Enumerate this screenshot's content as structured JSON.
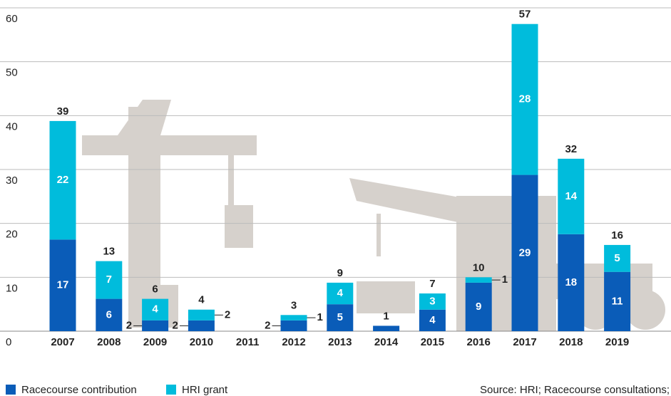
{
  "chart_data": {
    "type": "stacked-bar",
    "categories": [
      "2007",
      "2008",
      "2009",
      "2010",
      "2011",
      "2012",
      "2013",
      "2014",
      "2015",
      "2016",
      "2017",
      "2018",
      "2019"
    ],
    "series": [
      {
        "name": "Racecourse contribution",
        "color": "#0a5cb8",
        "values": [
          17,
          6,
          2,
          2,
          0,
          2,
          5,
          1,
          4,
          9,
          29,
          18,
          11
        ]
      },
      {
        "name": "HRI grant",
        "color": "#00bcdc",
        "values": [
          22,
          7,
          4,
          2,
          0,
          1,
          4,
          0,
          3,
          1,
          28,
          14,
          5
        ]
      }
    ],
    "totals": [
      39,
      13,
      6,
      4,
      null,
      3,
      9,
      1,
      7,
      10,
      57,
      32,
      16
    ],
    "ylim": [
      0,
      60
    ],
    "yticks": [
      0,
      10,
      20,
      30,
      40,
      50,
      60
    ],
    "grid": true,
    "source": "Source: HRI; Racecourse consultations;"
  }
}
